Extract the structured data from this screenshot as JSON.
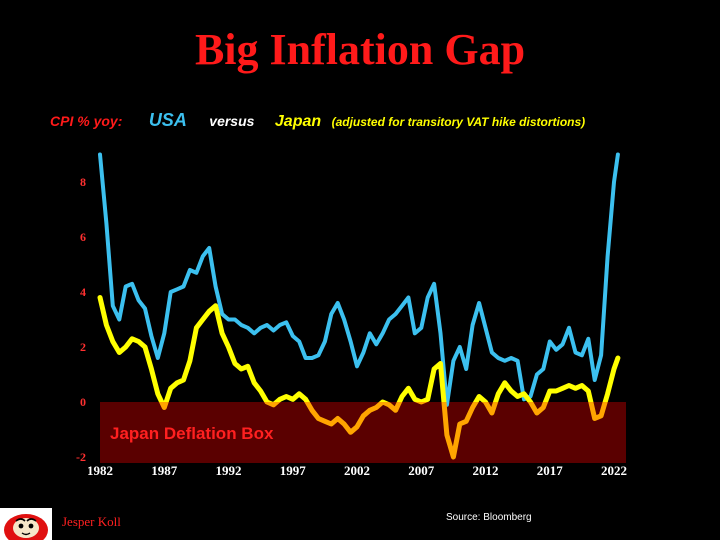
{
  "title": "Big Inflation Gap",
  "subtitle": {
    "cpi_label": "CPI % yoy:",
    "usa": "USA",
    "versus": "versus",
    "japan": "Japan",
    "japan_note": "(adjusted for transitory VAT hike distortions)"
  },
  "source": "Source: Bloomberg",
  "author": "Jesper Koll",
  "colors": {
    "title": "#ff1a1a",
    "cpi_label": "#ff1a1a",
    "usa": "#3cc0ef",
    "versus": "#ffffff",
    "japan": "#ffff00",
    "japan_bright": "#ffff00",
    "japan_deflation": "#ffa500",
    "deflation_box": "#5a0000",
    "deflation_label": "#ff2020",
    "axis_labels": "#ff3030",
    "background": "#000000"
  },
  "chart_data": {
    "type": "line",
    "title": "Big Inflation Gap",
    "xlabel": "",
    "ylabel": "",
    "xlim": [
      1982,
      2022.6
    ],
    "ylim": [
      -2,
      9
    ],
    "x_ticks": [
      1982,
      1987,
      1992,
      1997,
      2002,
      2007,
      2012,
      2017,
      2022
    ],
    "y_ticks": [
      -2,
      0,
      2,
      4,
      6,
      8
    ],
    "grid": false,
    "legend": "top (in subtitle)",
    "annotations": [
      {
        "text": "Japan Deflation Box",
        "x_range": [
          1982,
          2022.9
        ],
        "y_range": [
          -2,
          0
        ]
      }
    ],
    "series": [
      {
        "name": "USA",
        "x": [
          1982.0,
          1982.5,
          1983.0,
          1983.5,
          1984.0,
          1984.5,
          1985.0,
          1985.5,
          1986.0,
          1986.5,
          1987.0,
          1987.5,
          1988.0,
          1988.5,
          1989.0,
          1989.5,
          1990.0,
          1990.5,
          1991.0,
          1991.5,
          1992.0,
          1992.5,
          1993.0,
          1993.5,
          1994.0,
          1994.5,
          1995.0,
          1995.5,
          1996.0,
          1996.5,
          1997.0,
          1997.5,
          1998.0,
          1998.5,
          1999.0,
          1999.5,
          2000.0,
          2000.5,
          2001.0,
          2001.5,
          2002.0,
          2002.5,
          2003.0,
          2003.5,
          2004.0,
          2004.5,
          2005.0,
          2005.5,
          2006.0,
          2006.5,
          2007.0,
          2007.5,
          2008.0,
          2008.5,
          2009.0,
          2009.5,
          2010.0,
          2010.5,
          2011.0,
          2011.5,
          2012.0,
          2012.5,
          2013.0,
          2013.5,
          2014.0,
          2014.5,
          2015.0,
          2015.5,
          2016.0,
          2016.5,
          2017.0,
          2017.5,
          2018.0,
          2018.5,
          2019.0,
          2019.5,
          2020.0,
          2020.5,
          2021.0,
          2021.5,
          2022.0,
          2022.3
        ],
        "values": [
          9.0,
          6.5,
          3.5,
          3.0,
          4.2,
          4.3,
          3.7,
          3.4,
          2.4,
          1.6,
          2.5,
          4.0,
          4.1,
          4.2,
          4.8,
          4.7,
          5.3,
          5.6,
          4.2,
          3.2,
          3.0,
          3.0,
          2.8,
          2.7,
          2.5,
          2.7,
          2.8,
          2.6,
          2.8,
          2.9,
          2.4,
          2.2,
          1.6,
          1.6,
          1.7,
          2.2,
          3.2,
          3.6,
          3.0,
          2.2,
          1.3,
          1.8,
          2.5,
          2.1,
          2.5,
          3.0,
          3.2,
          3.5,
          3.8,
          2.5,
          2.7,
          3.8,
          4.3,
          2.5,
          -0.1,
          1.5,
          2.0,
          1.2,
          2.8,
          3.6,
          2.7,
          1.8,
          1.6,
          1.5,
          1.6,
          1.5,
          0.1,
          0.2,
          1.0,
          1.2,
          2.2,
          1.9,
          2.1,
          2.7,
          1.8,
          1.7,
          2.3,
          0.8,
          1.7,
          5.3,
          8.0,
          9.0
        ]
      },
      {
        "name": "Japan",
        "x": [
          1982.0,
          1982.5,
          1983.0,
          1983.5,
          1984.0,
          1984.5,
          1985.0,
          1985.5,
          1986.0,
          1986.5,
          1987.0,
          1987.5,
          1988.0,
          1988.5,
          1989.0,
          1989.5,
          1990.0,
          1990.5,
          1991.0,
          1991.5,
          1992.0,
          1992.5,
          1993.0,
          1993.5,
          1994.0,
          1994.5,
          1995.0,
          1995.5,
          1996.0,
          1996.5,
          1997.0,
          1997.5,
          1998.0,
          1998.5,
          1999.0,
          1999.5,
          2000.0,
          2000.5,
          2001.0,
          2001.5,
          2002.0,
          2002.5,
          2003.0,
          2003.5,
          2004.0,
          2004.5,
          2005.0,
          2005.5,
          2006.0,
          2006.5,
          2007.0,
          2007.5,
          2008.0,
          2008.5,
          2009.0,
          2009.5,
          2010.0,
          2010.5,
          2011.0,
          2011.5,
          2012.0,
          2012.5,
          2013.0,
          2013.5,
          2014.0,
          2014.5,
          2015.0,
          2015.5,
          2016.0,
          2016.5,
          2017.0,
          2017.5,
          2018.0,
          2018.5,
          2019.0,
          2019.5,
          2020.0,
          2020.5,
          2021.0,
          2021.5,
          2022.0,
          2022.3
        ],
        "values": [
          3.8,
          2.8,
          2.2,
          1.8,
          2.0,
          2.3,
          2.2,
          2.0,
          1.2,
          0.3,
          -0.2,
          0.5,
          0.7,
          0.8,
          1.5,
          2.7,
          3.0,
          3.3,
          3.5,
          2.5,
          2.0,
          1.4,
          1.2,
          1.3,
          0.7,
          0.4,
          0.0,
          -0.1,
          0.1,
          0.2,
          0.1,
          0.3,
          0.1,
          -0.3,
          -0.6,
          -0.7,
          -0.8,
          -0.6,
          -0.8,
          -1.1,
          -0.9,
          -0.5,
          -0.3,
          -0.2,
          0.0,
          -0.1,
          -0.3,
          0.2,
          0.5,
          0.1,
          0.0,
          0.1,
          1.2,
          1.4,
          -1.2,
          -2.0,
          -0.8,
          -0.7,
          -0.2,
          0.2,
          0.0,
          -0.4,
          0.3,
          0.7,
          0.4,
          0.2,
          0.3,
          0.0,
          -0.4,
          -0.2,
          0.4,
          0.4,
          0.5,
          0.6,
          0.5,
          0.6,
          0.4,
          -0.6,
          -0.5,
          0.3,
          1.2,
          1.6
        ]
      }
    ]
  }
}
